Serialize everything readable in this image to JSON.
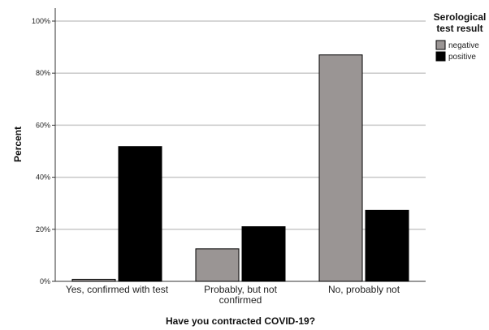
{
  "chart_data": {
    "type": "bar",
    "xlabel": "Have you contracted COVID-19?",
    "ylabel": "Percent",
    "ylim": [
      0,
      100
    ],
    "yticks": [
      "0%",
      "20%",
      "40%",
      "60%",
      "80%",
      "100%"
    ],
    "yticks_values": [
      0,
      20,
      40,
      60,
      80,
      100
    ],
    "categories": [
      "Yes, confirmed with test",
      "Probably, but not confirmed",
      "No, probably not"
    ],
    "category_lines": [
      [
        "Yes, confirmed with test"
      ],
      [
        "Probably, but not",
        "confirmed"
      ],
      [
        "No, probably not"
      ]
    ],
    "legend_title": [
      "Serological",
      "test result"
    ],
    "legend_position": "top-right",
    "grid": "horizontal",
    "series": [
      {
        "name": "negative",
        "values": [
          0.8,
          12.5,
          87.0
        ],
        "color": "#9a9594"
      },
      {
        "name": "positive",
        "values": [
          51.8,
          21.0,
          27.3
        ],
        "color": "#000000"
      }
    ]
  }
}
